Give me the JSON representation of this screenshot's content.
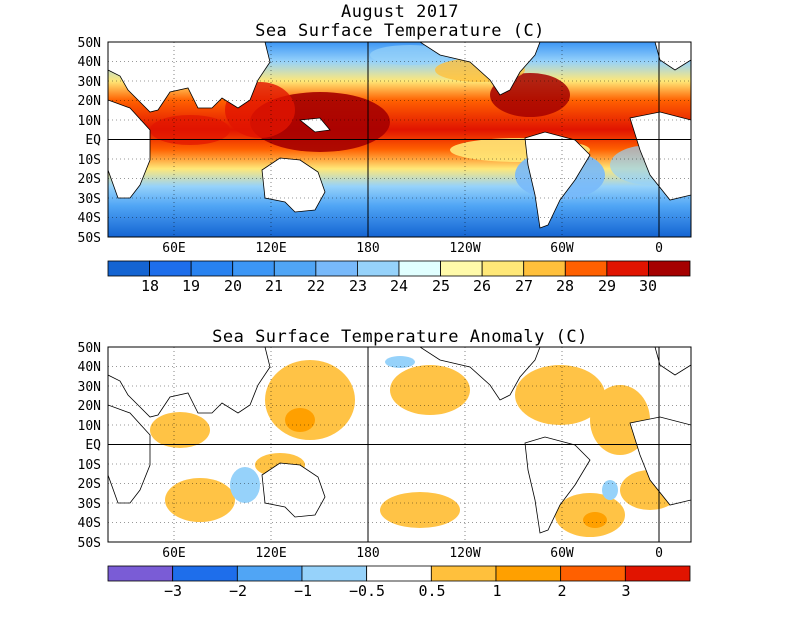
{
  "titles": {
    "date": "August 2017",
    "sst": "Sea Surface Temperature (C)",
    "anomaly": "Sea Surface Temperature Anomaly (C)"
  },
  "lat_labels": [
    "50N",
    "40N",
    "30N",
    "20N",
    "10N",
    "EQ",
    "10S",
    "20S",
    "30S",
    "40S",
    "50S"
  ],
  "lon_labels": [
    "60E",
    "120E",
    "180",
    "120W",
    "60W",
    "0"
  ],
  "sst_colorbar": {
    "labels": [
      "18",
      "19",
      "20",
      "21",
      "22",
      "23",
      "24",
      "25",
      "26",
      "27",
      "28",
      "29",
      "30"
    ],
    "colors": [
      "#1464d2",
      "#1e6eeb",
      "#2882f0",
      "#3c96f5",
      "#50a5f5",
      "#78b9fa",
      "#96d2fa",
      "#e1ffff",
      "#fffaaa",
      "#ffe878",
      "#ffc03c",
      "#ff6000",
      "#e11400",
      "#a50000"
    ]
  },
  "anom_colorbar": {
    "labels": [
      "−3",
      "−2",
      "−1",
      "−0.5",
      "0.5",
      "1",
      "2",
      "3"
    ],
    "colors": [
      "#7a5cd6",
      "#1e6eeb",
      "#50a5f5",
      "#96d2fa",
      "#ffffff",
      "#ffc03c",
      "#ffa000",
      "#ff6000",
      "#e11400"
    ]
  }
}
